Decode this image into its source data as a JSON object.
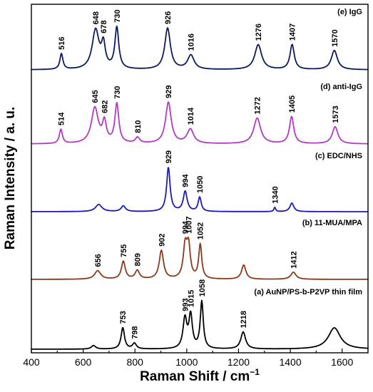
{
  "chart_data": {
    "type": "line",
    "title": "",
    "xlabel": "Raman Shift / cm",
    "xlabel_superscript": "−1",
    "ylabel": "Raman Intensity / a. u.",
    "xlim": [
      400,
      1700
    ],
    "xticks": [
      400,
      600,
      800,
      1000,
      1200,
      1400,
      1600
    ],
    "y_ticks_shown": false,
    "grid": false,
    "legend": "none",
    "series": [
      {
        "name": "(e) IgG",
        "color": "#0d1a5c",
        "peaks": [
          {
            "x": 516,
            "h": 22,
            "w": 7
          },
          {
            "x": 648,
            "h": 55,
            "w": 16
          },
          {
            "x": 678,
            "h": 32,
            "w": 9
          },
          {
            "x": 730,
            "h": 58,
            "w": 9
          },
          {
            "x": 926,
            "h": 58,
            "w": 13
          },
          {
            "x": 1016,
            "h": 20,
            "w": 15
          },
          {
            "x": 1276,
            "h": 35,
            "w": 16
          },
          {
            "x": 1407,
            "h": 35,
            "w": 10
          },
          {
            "x": 1570,
            "h": 27,
            "w": 14
          }
        ],
        "labels": [
          "516",
          "648",
          "678",
          "730",
          "926",
          "1016",
          "1276",
          "1407",
          "1570"
        ]
      },
      {
        "name": "(d) anti-IgG",
        "color": "#b23ac4",
        "peaks": [
          {
            "x": 514,
            "h": 20,
            "w": 7
          },
          {
            "x": 645,
            "h": 50,
            "w": 16
          },
          {
            "x": 682,
            "h": 28,
            "w": 9
          },
          {
            "x": 730,
            "h": 55,
            "w": 9
          },
          {
            "x": 810,
            "h": 8,
            "w": 10
          },
          {
            "x": 929,
            "h": 58,
            "w": 13
          },
          {
            "x": 1014,
            "h": 20,
            "w": 15
          },
          {
            "x": 1272,
            "h": 36,
            "w": 16
          },
          {
            "x": 1405,
            "h": 38,
            "w": 10
          },
          {
            "x": 1573,
            "h": 24,
            "w": 13
          }
        ],
        "labels": [
          "514",
          "645",
          "682",
          "730",
          "810",
          "929",
          "1014",
          "1272",
          "1405",
          "1573"
        ]
      },
      {
        "name": "(c) EDC/NHS",
        "color": "#1a1ab8",
        "peaks": [
          {
            "x": 660,
            "h": 10,
            "w": 15
          },
          {
            "x": 755,
            "h": 8,
            "w": 10
          },
          {
            "x": 929,
            "h": 62,
            "w": 8
          },
          {
            "x": 994,
            "h": 28,
            "w": 9
          },
          {
            "x": 1050,
            "h": 20,
            "w": 7
          },
          {
            "x": 1340,
            "h": 6,
            "w": 4
          },
          {
            "x": 1406,
            "h": 12,
            "w": 9
          }
        ],
        "labels": [
          "929",
          "994",
          "1050",
          "1340"
        ]
      },
      {
        "name": "(b) 11-MUA/MPA",
        "color": "#8a3a1a",
        "peaks": [
          {
            "x": 656,
            "h": 12,
            "w": 14
          },
          {
            "x": 755,
            "h": 25,
            "w": 9
          },
          {
            "x": 809,
            "h": 12,
            "w": 10
          },
          {
            "x": 902,
            "h": 40,
            "w": 10
          },
          {
            "x": 994,
            "h": 45,
            "w": 9
          },
          {
            "x": 1007,
            "h": 42,
            "w": 8
          },
          {
            "x": 1052,
            "h": 48,
            "w": 7
          },
          {
            "x": 1220,
            "h": 20,
            "w": 10
          },
          {
            "x": 1412,
            "h": 10,
            "w": 12
          }
        ],
        "labels": [
          "656",
          "755",
          "809",
          "902",
          "994",
          "1007",
          "1052",
          "1412"
        ]
      },
      {
        "name": "(a) AuNP/PS-b-P2VP thin film",
        "color": "#000000",
        "peaks": [
          {
            "x": 640,
            "h": 5,
            "w": 10
          },
          {
            "x": 753,
            "h": 30,
            "w": 8
          },
          {
            "x": 798,
            "h": 8,
            "w": 9
          },
          {
            "x": 993,
            "h": 42,
            "w": 9
          },
          {
            "x": 1015,
            "h": 46,
            "w": 8
          },
          {
            "x": 1058,
            "h": 66,
            "w": 7
          },
          {
            "x": 1218,
            "h": 24,
            "w": 11
          },
          {
            "x": 1570,
            "h": 30,
            "w": 28
          }
        ],
        "labels": [
          "753",
          "798",
          "993",
          "1015",
          "1058",
          "1218"
        ]
      }
    ]
  }
}
